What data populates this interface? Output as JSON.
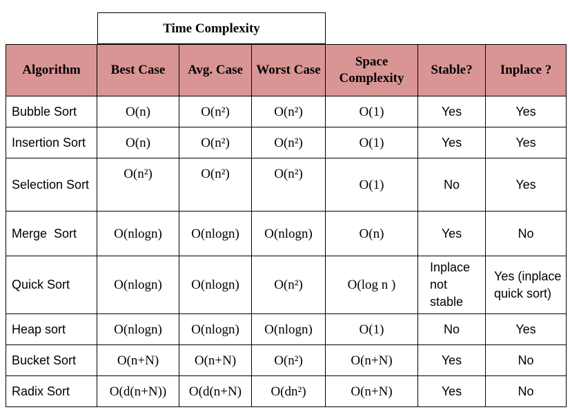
{
  "group_header": "Time Complexity",
  "headers": {
    "algorithm": "Algorithm",
    "best": "Best Case",
    "avg": "Avg. Case",
    "worst": "Worst Case",
    "space": "Space Complexity",
    "stable": "Stable?",
    "inplace": "Inplace ?"
  },
  "rows": [
    {
      "algorithm": "Bubble Sort",
      "best": "O(n)",
      "avg": "O(n²)",
      "worst": "O(n²)",
      "space": "O(1)",
      "stable": "Yes",
      "inplace": "Yes"
    },
    {
      "algorithm": "Insertion Sort",
      "best": "O(n)",
      "avg": "O(n²)",
      "worst": "O(n²)",
      "space": "O(1)",
      "stable": "Yes",
      "inplace": "Yes"
    },
    {
      "algorithm": "Selection Sort",
      "best": "O(n²)",
      "avg": "O(n²)",
      "worst": "O(n²)",
      "space": "O(1)",
      "stable": "No",
      "inplace": "Yes"
    },
    {
      "algorithm": "Merge  Sort",
      "best": "O(nlogn)",
      "avg": "O(nlogn)",
      "worst": "O(nlogn)",
      "space": "O(n)",
      "stable": "Yes",
      "inplace": "No"
    },
    {
      "algorithm": "Quick Sort",
      "best": "O(nlogn)",
      "avg": "O(nlogn)",
      "worst": "O(n²)",
      "space": "O(log n )",
      "stable": "Inplace not stable",
      "inplace": "Yes (inplace quick sort)"
    },
    {
      "algorithm": "Heap sort",
      "best": "O(nlogn)",
      "avg": "O(nlogn)",
      "worst": "O(nlogn)",
      "space": "O(1)",
      "stable": "No",
      "inplace": "Yes"
    },
    {
      "algorithm": "Bucket Sort",
      "best": "O(n+N)",
      "avg": "O(n+N)",
      "worst": "O(n²)",
      "space": "O(n+N)",
      "stable": "Yes",
      "inplace": "No"
    },
    {
      "algorithm": "Radix Sort",
      "best": "O(d(n+N))",
      "avg": "O(d(n+N)",
      "worst": "O(dn²)",
      "space": "O(n+N)",
      "stable": "Yes",
      "inplace": "No"
    }
  ]
}
